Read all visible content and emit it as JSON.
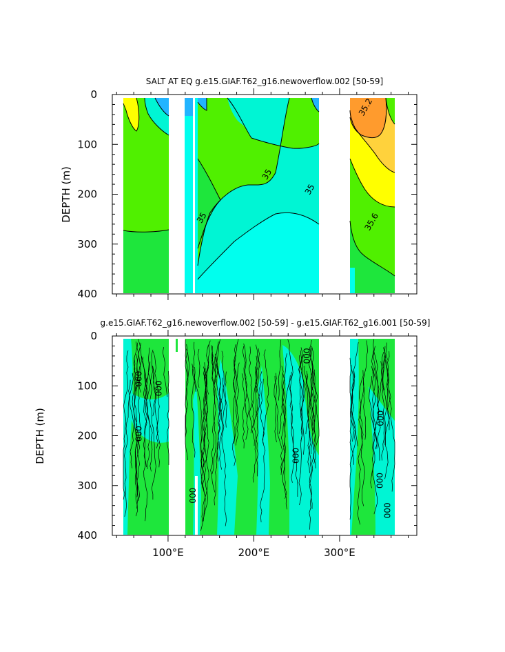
{
  "colors": {
    "cyan": "#00ffee",
    "aqua": "#00f5d4",
    "green": "#1ee63c",
    "lime": "#50f000",
    "blue": "#22b4ff",
    "deepblue": "#1e6ee6",
    "yellow": "#ffff00",
    "gold": "#ffd23c",
    "orange": "#ff9b2d"
  },
  "chart_data": [
    {
      "type": "heatmap",
      "title": "SALT AT EQ g.e15.GIAF.T62_g16.newoverflow.002 [50-59]",
      "xlabel": "",
      "ylabel": "DEPTH (m)",
      "xlim": [
        35,
        390
      ],
      "ylim": [
        400,
        0
      ],
      "x_ticks": [],
      "y_ticks": [
        0,
        100,
        200,
        300,
        400
      ],
      "y_tick_labels": [
        "0",
        "100",
        "200",
        "300",
        "400"
      ],
      "contour_labels": [
        {
          "text": "35",
          "x": 218,
          "y": 163
        },
        {
          "text": "35",
          "x": 268,
          "y": 193
        },
        {
          "text": "35",
          "x": 142,
          "y": 250
        },
        {
          "text": "35.2",
          "x": 333,
          "y": 28
        },
        {
          "text": "35.6",
          "x": 340,
          "y": 258
        }
      ]
    },
    {
      "type": "heatmap",
      "title": "g.e15.GIAF.T62_g16.newoverflow.002 [50-59] - g.e15.GIAF.T62_g16.001 [50-59]",
      "xlabel": "",
      "ylabel": "DEPTH (m)",
      "xlim": [
        35,
        390
      ],
      "ylim": [
        400,
        0
      ],
      "x_ticks": [
        100,
        200,
        300
      ],
      "x_tick_labels": [
        "100°E",
        "200°E",
        "300°E"
      ],
      "y_ticks": [
        0,
        100,
        200,
        300,
        400
      ],
      "y_tick_labels": [
        "0",
        "100",
        "200",
        "300",
        "400"
      ],
      "contour_labels": [
        {
          "text": "000",
          "x": 62,
          "y": 86
        },
        {
          "text": "000",
          "x": 62,
          "y": 196
        },
        {
          "text": "000",
          "x": 85,
          "y": 105
        },
        {
          "text": "000",
          "x": 258,
          "y": 40
        },
        {
          "text": "000",
          "x": 245,
          "y": 240
        },
        {
          "text": "000",
          "x": 344,
          "y": 165
        },
        {
          "text": "000",
          "x": 343,
          "y": 290
        },
        {
          "text": "000",
          "x": 352,
          "y": 350
        },
        {
          "text": "000",
          "x": 125,
          "y": 320
        }
      ]
    }
  ]
}
